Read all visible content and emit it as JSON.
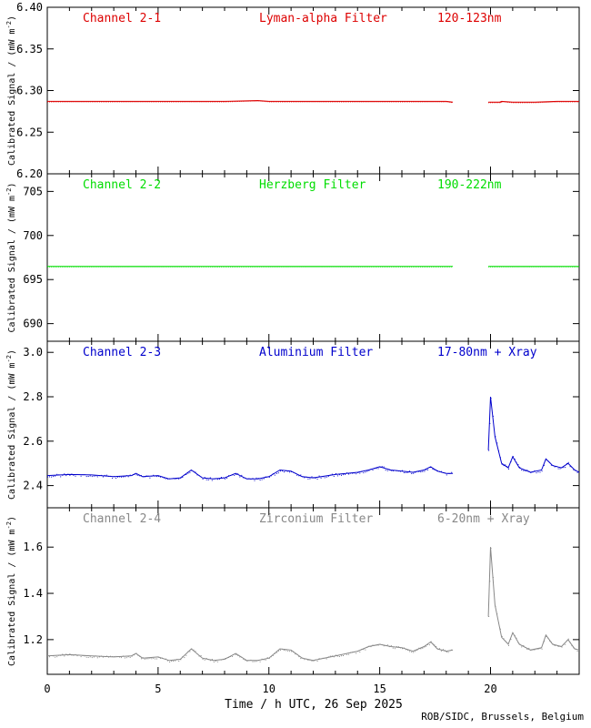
{
  "chart_data": [
    {
      "type": "scatter",
      "channel": "Channel 2-1",
      "filter": "Lyman-alpha Filter",
      "band": "120-123nm",
      "color": "#dd0000",
      "ylabel": "Calibrated Signal / (mW m",
      "ylabel_exp": "-2",
      "ylabel_close": ")",
      "ylim": [
        6.2,
        6.4
      ],
      "yticks": [
        6.2,
        6.25,
        6.3,
        6.35,
        6.4
      ],
      "ytick_labels": [
        "6.20",
        "6.25",
        "6.30",
        "6.35",
        "6.40"
      ],
      "series": [
        {
          "x": [
            0,
            2,
            4,
            6,
            8,
            9.5,
            10,
            12,
            14,
            16,
            18,
            18.3
          ],
          "y": [
            6.287,
            6.287,
            6.287,
            6.287,
            6.287,
            6.288,
            6.287,
            6.287,
            6.287,
            6.287,
            6.287,
            6.286
          ]
        },
        {
          "x": [
            19.9,
            20.4,
            20.5,
            21,
            22,
            23,
            24
          ],
          "y": [
            6.286,
            6.286,
            6.287,
            6.286,
            6.286,
            6.287,
            6.287
          ]
        }
      ]
    },
    {
      "type": "scatter",
      "channel": "Channel 2-2",
      "filter": "Herzberg Filter",
      "band": "190-222nm",
      "color": "#00dd00",
      "ylabel": "Calibrated Signal / (mW m",
      "ylabel_exp": "-2",
      "ylabel_close": ")",
      "ylim": [
        688,
        707
      ],
      "yticks": [
        690,
        695,
        700,
        705
      ],
      "ytick_labels": [
        "690",
        "695",
        "700",
        "705"
      ],
      "series": [
        {
          "x": [
            0,
            4,
            8,
            12,
            16,
            18.3
          ],
          "y": [
            696.5,
            696.5,
            696.5,
            696.5,
            696.5,
            696.5
          ]
        },
        {
          "x": [
            19.9,
            22,
            24
          ],
          "y": [
            696.5,
            696.5,
            696.5
          ]
        }
      ]
    },
    {
      "type": "scatter",
      "channel": "Channel 2-3",
      "filter": "Aluminium Filter",
      "band": "17-80nm + Xray",
      "color": "#0000cc",
      "ylabel": "Calibrated Signal / (mW m",
      "ylabel_exp": "-2",
      "ylabel_close": ")",
      "ylim": [
        2.3,
        3.05
      ],
      "yticks": [
        2.4,
        2.6,
        2.8,
        3.0
      ],
      "ytick_labels": [
        "2.4",
        "2.6",
        "2.8",
        "3.0"
      ],
      "series": [
        {
          "x": [
            0,
            1,
            2,
            3,
            3.8,
            4,
            4.3,
            5,
            5.5,
            6,
            6.5,
            7,
            7.5,
            8,
            8.5,
            9,
            9.5,
            10,
            10.5,
            11,
            11.5,
            12,
            13,
            14,
            14.5,
            15,
            15.5,
            16,
            16.5,
            17,
            17.3,
            17.6,
            18,
            18.3
          ],
          "y": [
            2.445,
            2.45,
            2.448,
            2.44,
            2.445,
            2.455,
            2.44,
            2.445,
            2.43,
            2.435,
            2.47,
            2.435,
            2.43,
            2.435,
            2.455,
            2.43,
            2.43,
            2.44,
            2.47,
            2.465,
            2.44,
            2.435,
            2.45,
            2.46,
            2.47,
            2.485,
            2.47,
            2.465,
            2.46,
            2.47,
            2.485,
            2.465,
            2.455,
            2.455
          ]
        },
        {
          "x": [
            19.9,
            20,
            20.2,
            20.5,
            20.8,
            21,
            21.3,
            21.8,
            22.3,
            22.5,
            22.8,
            23.2,
            23.5,
            23.8,
            24
          ],
          "y": [
            2.56,
            2.8,
            2.62,
            2.5,
            2.48,
            2.53,
            2.48,
            2.46,
            2.47,
            2.52,
            2.49,
            2.48,
            2.5,
            2.47,
            2.46
          ]
        }
      ]
    },
    {
      "type": "scatter",
      "channel": "Channel 2-4",
      "filter": "Zirconium Filter",
      "band": "6-20nm + Xray",
      "color": "#888888",
      "ylabel": "Calibrated Signal / (mW m",
      "ylabel_exp": "-2",
      "ylabel_close": ")",
      "ylim": [
        1.05,
        1.77
      ],
      "yticks": [
        1.2,
        1.4,
        1.6
      ],
      "ytick_labels": [
        "1.2",
        "1.4",
        "1.6"
      ],
      "series": [
        {
          "x": [
            0,
            1,
            2,
            3,
            3.8,
            4,
            4.3,
            5,
            5.5,
            6,
            6.5,
            7,
            7.5,
            8,
            8.5,
            9,
            9.5,
            10,
            10.5,
            11,
            11.5,
            12,
            13,
            14,
            14.5,
            15,
            15.5,
            16,
            16.5,
            17,
            17.3,
            17.6,
            18,
            18.3
          ],
          "y": [
            1.13,
            1.135,
            1.13,
            1.125,
            1.13,
            1.14,
            1.12,
            1.125,
            1.11,
            1.115,
            1.16,
            1.12,
            1.11,
            1.115,
            1.14,
            1.11,
            1.11,
            1.12,
            1.16,
            1.155,
            1.12,
            1.11,
            1.13,
            1.15,
            1.17,
            1.18,
            1.17,
            1.165,
            1.15,
            1.17,
            1.19,
            1.16,
            1.15,
            1.155
          ]
        },
        {
          "x": [
            19.9,
            20,
            20.2,
            20.5,
            20.8,
            21,
            21.3,
            21.8,
            22.3,
            22.5,
            22.8,
            23.2,
            23.5,
            23.8,
            24
          ],
          "y": [
            1.3,
            1.6,
            1.35,
            1.21,
            1.18,
            1.23,
            1.18,
            1.155,
            1.165,
            1.22,
            1.18,
            1.17,
            1.2,
            1.16,
            1.155
          ]
        }
      ]
    }
  ],
  "xaxis": {
    "xlim": [
      0,
      24
    ],
    "ticks": [
      0,
      5,
      10,
      15,
      20
    ],
    "tick_labels": [
      "0",
      "5",
      "10",
      "15",
      "20"
    ],
    "title": "Time / h UTC, 26 Sep 2025"
  },
  "credit": "ROB/SIDC, Brussels, Belgium"
}
